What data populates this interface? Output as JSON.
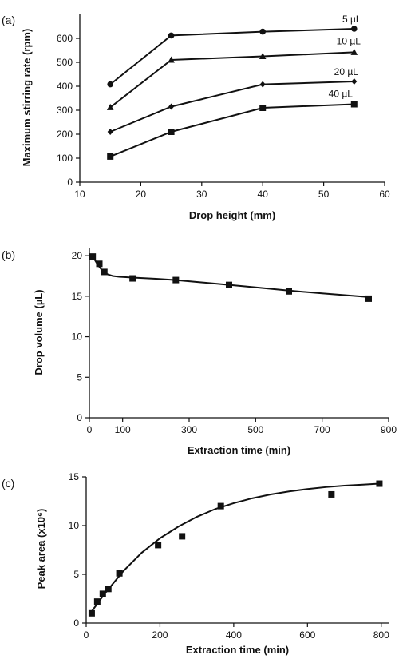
{
  "chart_data": [
    {
      "type": "line",
      "panel_label": "(a)",
      "xlabel": "Drop height (mm)",
      "ylabel": "Maximum stirring rate (rpm)",
      "xlim": [
        10,
        60
      ],
      "ylim": [
        0,
        700
      ],
      "xticks": [
        10,
        20,
        30,
        40,
        50,
        60
      ],
      "yticks": [
        0,
        100,
        200,
        300,
        400,
        500,
        600
      ],
      "x": [
        15,
        25,
        40,
        55
      ],
      "series": [
        {
          "name": "5 µL",
          "marker": "circle",
          "values": [
            408,
            612,
            628,
            640
          ]
        },
        {
          "name": "10 µL",
          "marker": "triangle",
          "values": [
            312,
            510,
            525,
            542
          ]
        },
        {
          "name": "20 µL",
          "marker": "diamond",
          "values": [
            210,
            315,
            408,
            420
          ]
        },
        {
          "name": "40 µL",
          "marker": "square",
          "values": [
            107,
            210,
            310,
            325
          ]
        }
      ]
    },
    {
      "type": "scatter",
      "panel_label": "(b)",
      "xlabel": "Extraction time (min)",
      "ylabel": "Drop volume (µL)",
      "xlim": [
        0,
        900
      ],
      "ylim": [
        0,
        21
      ],
      "xticks": [
        0,
        100,
        300,
        500,
        700,
        900
      ],
      "yticks": [
        0,
        5,
        10,
        15,
        20
      ],
      "points": {
        "x": [
          10,
          30,
          45,
          130,
          260,
          420,
          600,
          840
        ],
        "y": [
          19.9,
          19.0,
          18.0,
          17.2,
          17.0,
          16.4,
          15.6,
          14.7
        ]
      },
      "fit": {
        "x": [
          10,
          25,
          40,
          55,
          70,
          90,
          110,
          130,
          200,
          260,
          340,
          420,
          500,
          600,
          700,
          840
        ],
        "y": [
          19.9,
          18.9,
          18.1,
          17.7,
          17.5,
          17.4,
          17.35,
          17.3,
          17.15,
          17.0,
          16.7,
          16.4,
          16.1,
          15.7,
          15.35,
          14.9
        ]
      }
    },
    {
      "type": "scatter",
      "panel_label": "(c)",
      "xlabel": "Extraction time (min)",
      "ylabel": "Peak area (x10⁶)",
      "xlim": [
        0,
        820
      ],
      "ylim": [
        0,
        15
      ],
      "xticks": [
        0,
        200,
        400,
        600,
        800
      ],
      "yticks": [
        0,
        5,
        10,
        15
      ],
      "points": {
        "x": [
          15,
          30,
          45,
          60,
          90,
          195,
          260,
          365,
          665,
          795
        ],
        "y": [
          1.0,
          2.2,
          3.0,
          3.5,
          5.1,
          8.0,
          8.9,
          12.0,
          13.2,
          14.3
        ]
      },
      "fit": {
        "x": [
          15,
          50,
          100,
          150,
          200,
          250,
          300,
          350,
          400,
          450,
          500,
          550,
          600,
          650,
          700,
          750,
          795
        ],
        "y": [
          1.2,
          3.0,
          5.3,
          7.2,
          8.7,
          9.9,
          10.9,
          11.7,
          12.3,
          12.8,
          13.2,
          13.5,
          13.75,
          13.95,
          14.1,
          14.2,
          14.3
        ]
      }
    }
  ]
}
